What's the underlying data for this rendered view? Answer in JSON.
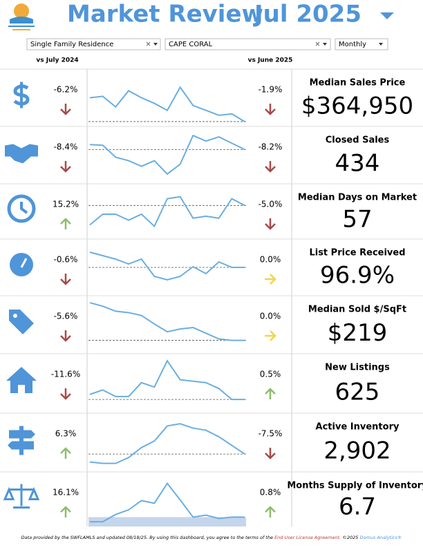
{
  "header": {
    "title": "Market Review",
    "period": "Jul 2025"
  },
  "filters": {
    "property_type": "Single Family Residence",
    "city": "CAPE CORAL",
    "interval": "Monthly"
  },
  "columns": {
    "yoy": "vs July 2024",
    "mom": "vs June 2025"
  },
  "trend_ylim": [
    0,
    70
  ],
  "metrics": [
    {
      "icon": "dollar",
      "label": "Median Sales Price",
      "value": "$364,950",
      "yoy": "-6.2%",
      "yoy_direction": "down",
      "mom": "-1.9%",
      "mom_direction": "down",
      "reference": "dashed",
      "trend": [
        37,
        39,
        24,
        47,
        37,
        29,
        19,
        52,
        26,
        19,
        12,
        14,
        3
      ]
    },
    {
      "icon": "handshake",
      "label": "Closed Sales",
      "value": "434",
      "yoy": "-8.4%",
      "yoy_direction": "down",
      "mom": "-8.2%",
      "mom_direction": "down",
      "reference": "dashed",
      "trend": [
        52,
        51,
        34,
        29,
        21,
        29,
        10,
        24,
        65,
        57,
        63,
        54,
        45
      ]
    },
    {
      "icon": "clock",
      "label": "Median Days on Market",
      "value": "57",
      "yoy": "15.2%",
      "yoy_direction": "up",
      "mom": "-5.0%",
      "mom_direction": "down",
      "reference": "dashed",
      "trend": [
        17,
        33,
        33,
        24,
        33,
        15,
        56,
        59,
        27,
        30,
        27,
        56,
        46
      ]
    },
    {
      "icon": "gauge",
      "label": "List Price Received",
      "value": "96.9%",
      "yoy": "-0.6%",
      "yoy_direction": "down",
      "mom": "0.0%",
      "mom_direction": "flat",
      "reference": "dashed",
      "trend": [
        59,
        54,
        49,
        42,
        49,
        24,
        19,
        24,
        38,
        28,
        45,
        37,
        37
      ]
    },
    {
      "icon": "tag",
      "label": "Median Sold $/SqFt",
      "value": "$219",
      "yoy": "-5.6%",
      "yoy_direction": "down",
      "mom": "0.0%",
      "mom_direction": "flat",
      "reference": "dashed",
      "trend": [
        68,
        63,
        56,
        54,
        50,
        38,
        27,
        31,
        33,
        25,
        17,
        15,
        15
      ]
    },
    {
      "icon": "house",
      "label": "New Listings",
      "value": "625",
      "yoy": "-11.6%",
      "yoy_direction": "down",
      "mom": "0.5%",
      "mom_direction": "up",
      "reference": "dashed",
      "trend": [
        22,
        28,
        19,
        19,
        38,
        32,
        68,
        42,
        40,
        38,
        30,
        15,
        15
      ]
    },
    {
      "icon": "signpost",
      "label": "Active Inventory",
      "value": "2,902",
      "yoy": "6.3%",
      "yoy_direction": "up",
      "mom": "-7.5%",
      "mom_direction": "down",
      "reference": "dashed",
      "trend": [
        10,
        8,
        8,
        16,
        30,
        39,
        60,
        63,
        57,
        54,
        45,
        33,
        21
      ]
    },
    {
      "icon": "scale",
      "label": "Months Supply of Inventory",
      "value": "6.7",
      "yoy": "16.1%",
      "yoy_direction": "up",
      "mom": "0.8%",
      "mom_direction": "up",
      "reference": "shaded",
      "trend": [
        3,
        3,
        14,
        21,
        35,
        31,
        61,
        36,
        10,
        13,
        8,
        10,
        10
      ]
    }
  ],
  "footer": {
    "text": "Data provided by the SWFLAMLS and updated 08/18/25.  By using this dashboard, you agree to the terms of the",
    "link": "End User License Agreement.",
    "copyright": "©2025",
    "brand": "Domus Analytics®"
  }
}
